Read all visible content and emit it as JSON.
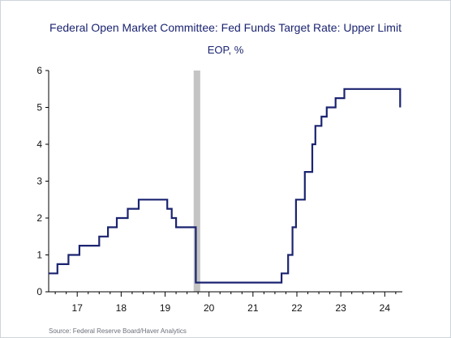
{
  "chart_data": {
    "type": "line",
    "title": "Federal Open Market Committee: Fed Funds Target Rate: Upper Limit",
    "subtitle": "EOP, %",
    "source": "Source:  Federal Reserve Board/Haver Analytics",
    "xlim": [
      2016.35,
      2024.4
    ],
    "ylim": [
      0,
      6
    ],
    "y_ticks": [
      0,
      1,
      2,
      3,
      4,
      5,
      6
    ],
    "x_ticks": [
      {
        "label": "17",
        "x": 2017.0
      },
      {
        "label": "18",
        "x": 2018.0
      },
      {
        "label": "19",
        "x": 2019.0
      },
      {
        "label": "20",
        "x": 2020.0
      },
      {
        "label": "21",
        "x": 2021.0
      },
      {
        "label": "22",
        "x": 2022.0
      },
      {
        "label": "23",
        "x": 2023.0
      },
      {
        "label": "24",
        "x": 2024.0
      }
    ],
    "recession": {
      "start": 2019.65,
      "end": 2019.8
    },
    "line_color": "#1b2470",
    "recession_color": "#c4c4c4",
    "series": [
      {
        "points": [
          [
            2016.35,
            0.5
          ],
          [
            2016.55,
            0.5
          ],
          [
            2016.55,
            0.75
          ],
          [
            2016.8,
            0.75
          ],
          [
            2016.8,
            1.0
          ],
          [
            2017.05,
            1.0
          ],
          [
            2017.05,
            1.25
          ],
          [
            2017.5,
            1.25
          ],
          [
            2017.5,
            1.5
          ],
          [
            2017.7,
            1.5
          ],
          [
            2017.7,
            1.75
          ],
          [
            2017.9,
            1.75
          ],
          [
            2017.9,
            2.0
          ],
          [
            2018.15,
            2.0
          ],
          [
            2018.15,
            2.25
          ],
          [
            2018.4,
            2.25
          ],
          [
            2018.4,
            2.5
          ],
          [
            2019.05,
            2.5
          ],
          [
            2019.05,
            2.25
          ],
          [
            2019.15,
            2.25
          ],
          [
            2019.15,
            2.0
          ],
          [
            2019.25,
            2.0
          ],
          [
            2019.25,
            1.75
          ],
          [
            2019.7,
            1.75
          ],
          [
            2019.7,
            0.25
          ],
          [
            2021.65,
            0.25
          ],
          [
            2021.65,
            0.5
          ],
          [
            2021.8,
            0.5
          ],
          [
            2021.8,
            1.0
          ],
          [
            2021.9,
            1.0
          ],
          [
            2021.9,
            1.75
          ],
          [
            2021.98,
            1.75
          ],
          [
            2021.98,
            2.5
          ],
          [
            2022.18,
            2.5
          ],
          [
            2022.18,
            3.25
          ],
          [
            2022.35,
            3.25
          ],
          [
            2022.35,
            4.0
          ],
          [
            2022.42,
            4.0
          ],
          [
            2022.42,
            4.5
          ],
          [
            2022.56,
            4.5
          ],
          [
            2022.56,
            4.75
          ],
          [
            2022.68,
            4.75
          ],
          [
            2022.68,
            5.0
          ],
          [
            2022.88,
            5.0
          ],
          [
            2022.88,
            5.25
          ],
          [
            2023.08,
            5.25
          ],
          [
            2023.08,
            5.5
          ],
          [
            2024.35,
            5.5
          ],
          [
            2024.35,
            5.0
          ]
        ]
      }
    ]
  }
}
